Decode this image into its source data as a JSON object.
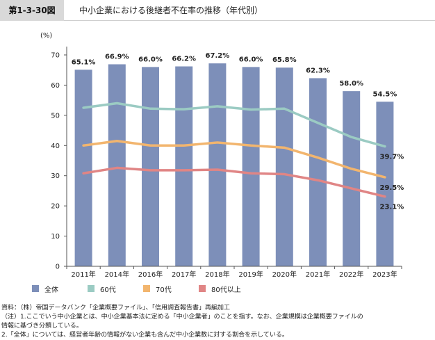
{
  "header": {
    "figure_number": "第1-3-30図",
    "title": "中小企業における後継者不在率の推移（年代別）"
  },
  "chart_data": {
    "type": "bar+line",
    "ylabel": "(%)",
    "ylim": [
      0,
      70
    ],
    "yticks": [
      0,
      10,
      20,
      30,
      40,
      50,
      60,
      70
    ],
    "grid": false,
    "legend_position": "bottom",
    "categories": [
      "2011年",
      "2014年",
      "2016年",
      "2017年",
      "2018年",
      "2019年",
      "2020年",
      "2021年",
      "2022年",
      "2023年"
    ],
    "series": [
      {
        "name": "全体",
        "type": "bar",
        "color": "#7d8fb9",
        "values": [
          65.1,
          66.9,
          66.0,
          66.2,
          67.2,
          66.0,
          65.8,
          62.3,
          58.0,
          54.5
        ],
        "labels": [
          "65.1%",
          "66.9%",
          "66.0%",
          "66.2%",
          "67.2%",
          "66.0%",
          "65.8%",
          "62.3%",
          "58.0%",
          "54.5%"
        ]
      },
      {
        "name": "60代",
        "type": "line",
        "color": "#9bcbc3",
        "values": [
          52.5,
          54.0,
          52.2,
          52.0,
          53.0,
          51.9,
          52.2,
          47.5,
          42.8,
          39.7
        ],
        "end_label": "39.7%"
      },
      {
        "name": "70代",
        "type": "line",
        "color": "#f2b56e",
        "values": [
          40.0,
          41.5,
          40.0,
          40.0,
          41.0,
          40.0,
          39.3,
          36.0,
          32.3,
          29.5
        ],
        "end_label": "29.5%"
      },
      {
        "name": "80代以上",
        "type": "line",
        "color": "#e08585",
        "values": [
          30.8,
          32.6,
          31.8,
          31.8,
          32.0,
          30.8,
          30.5,
          28.5,
          25.8,
          23.1
        ],
        "end_label": "23.1%"
      }
    ]
  },
  "notes": [
    "資料：（株）帝国データバンク「企業概要ファイル」、「信用調査報告書」再編加工",
    "（注）1.ここでいう中小企業とは、中小企業基本法に定める「中小企業者」のことを指す。なお、企業規模は企業概要ファイルの",
    "情報に基づき分類している。",
    "2.「全体」については、経営者年齢の情報がない企業も含んだ中小企業数に対する割合を示している。"
  ]
}
